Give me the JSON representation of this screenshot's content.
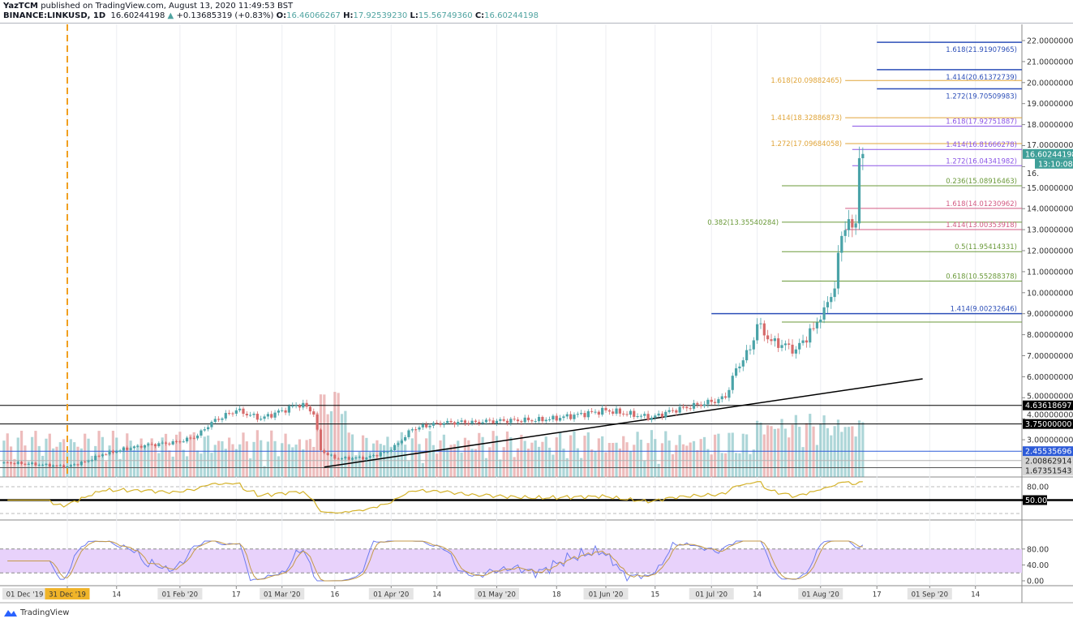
{
  "header": {
    "author": "YazTCM",
    "published": "published on TradingView.com, August 13, 2020 11:49:53 BST",
    "symbol": "BINANCE:LINKUSD, 1D",
    "last": "16.60244198",
    "change": "+0.13685319 (+0.83%)",
    "open_label": "O:",
    "open": "16.46066267",
    "high_label": "H:",
    "high": "17.92539230",
    "low_label": "L:",
    "low": "15.56749360",
    "close_label": "C:",
    "close": "16.60244198"
  },
  "colors": {
    "up": "#4aa3a8",
    "down": "#d66a6a",
    "fib_blue": "#2d4fb8",
    "fib_orange": "#e0a53a",
    "fib_purple": "#8b55e6",
    "fib_green": "#6b9a3a",
    "fib_pink": "#d35b83",
    "rsi": "#d4b22a",
    "stoch_k": "#6d7cf0",
    "stoch_d": "#c49a48",
    "stoch_band": "#e8d2fb",
    "last_price_bg": "#3f9f98"
  },
  "chart_data": {
    "type": "candlestick",
    "title": "BINANCE:LINKUSD, 1D",
    "price_axis": {
      "ylim": [
        1.3,
        22.7
      ],
      "ticks": [
        "22.00000000",
        "21.00000000",
        "20.00000000",
        "19.00000000",
        "18.00000000",
        "17.00000000",
        "16.",
        "15.00000000",
        "14.00000000",
        "13.00000000",
        "12.00000000",
        "11.00000000",
        "10.00000000",
        "9.00000000",
        "8.00000000",
        "7.00000000",
        "6.00000000",
        "5.00000000",
        "4.00000000",
        "3.00000000"
      ]
    },
    "time_axis": {
      "labels": [
        {
          "date": "2019-12-13",
          "text": "01 Dec '19",
          "style": "box"
        },
        {
          "date": "2019-12-31",
          "text": "31 Dec '19",
          "style": "highlight"
        },
        {
          "date": "2020-01-14",
          "text": "14"
        },
        {
          "date": "2020-02-01",
          "text": "01 Feb '20",
          "style": "box"
        },
        {
          "date": "2020-02-17",
          "text": "17"
        },
        {
          "date": "2020-03-01",
          "text": "01 Mar '20",
          "style": "box"
        },
        {
          "date": "2020-03-16",
          "text": "16"
        },
        {
          "date": "2020-04-01",
          "text": "01 Apr '20",
          "style": "box"
        },
        {
          "date": "2020-04-14",
          "text": "14"
        },
        {
          "date": "2020-05-01",
          "text": "01 May '20",
          "style": "box"
        },
        {
          "date": "2020-05-18",
          "text": "18"
        },
        {
          "date": "2020-06-01",
          "text": "01 Jun '20",
          "style": "box"
        },
        {
          "date": "2020-06-15",
          "text": "15"
        },
        {
          "date": "2020-07-01",
          "text": "01 Jul '20",
          "style": "box"
        },
        {
          "date": "2020-07-14",
          "text": "14"
        },
        {
          "date": "2020-08-01",
          "text": "01 Aug '20",
          "style": "box"
        },
        {
          "date": "2020-08-17",
          "text": "17"
        },
        {
          "date": "2020-09-01",
          "text": "01 Sep '20",
          "style": "box"
        },
        {
          "date": "2020-09-14",
          "text": "14"
        }
      ]
    },
    "close_path": [
      [
        "2019-12-13",
        1.92
      ],
      [
        "2019-12-20",
        1.85
      ],
      [
        "2019-12-31",
        1.73
      ],
      [
        "2020-01-05",
        1.95
      ],
      [
        "2020-01-10",
        2.3
      ],
      [
        "2020-01-20",
        2.7
      ],
      [
        "2020-02-01",
        2.9
      ],
      [
        "2020-02-06",
        3.2
      ],
      [
        "2020-02-10",
        3.85
      ],
      [
        "2020-02-17",
        4.4
      ],
      [
        "2020-02-24",
        4.0
      ],
      [
        "2020-03-01",
        4.4
      ],
      [
        "2020-03-07",
        4.75
      ],
      [
        "2020-03-10",
        4.2
      ],
      [
        "2020-03-12",
        2.5
      ],
      [
        "2020-03-16",
        2.1
      ],
      [
        "2020-03-25",
        2.15
      ],
      [
        "2020-04-01",
        2.5
      ],
      [
        "2020-04-07",
        3.5
      ],
      [
        "2020-04-14",
        3.8
      ],
      [
        "2020-04-25",
        3.85
      ],
      [
        "2020-05-01",
        3.9
      ],
      [
        "2020-05-15",
        3.95
      ],
      [
        "2020-06-01",
        4.4
      ],
      [
        "2020-06-14",
        4.05
      ],
      [
        "2020-06-20",
        4.4
      ],
      [
        "2020-07-01",
        4.8
      ],
      [
        "2020-07-05",
        5.0
      ],
      [
        "2020-07-08",
        6.4
      ],
      [
        "2020-07-12",
        7.3
      ],
      [
        "2020-07-14",
        8.5
      ],
      [
        "2020-07-18",
        7.7
      ],
      [
        "2020-07-25",
        7.3
      ],
      [
        "2020-07-30",
        8.3
      ],
      [
        "2020-08-02",
        9.3
      ],
      [
        "2020-08-05",
        10.2
      ],
      [
        "2020-08-07",
        12.7
      ],
      [
        "2020-08-09",
        13.5
      ],
      [
        "2020-08-10",
        13.1
      ],
      [
        "2020-08-11",
        13.3
      ],
      [
        "2020-08-12",
        16.4
      ],
      [
        "2020-08-13",
        16.60244198
      ]
    ],
    "fib_levels": [
      {
        "price": 21.91907965,
        "label": "1.618(21.91907965)",
        "color": "fib_blue",
        "from": "2020-08-17"
      },
      {
        "price": 20.61372739,
        "label": "1.414(20.61372739)",
        "color": "fib_blue",
        "from": "2020-08-17"
      },
      {
        "price": 20.09882465,
        "label": "1.618(20.09882465)",
        "color": "fib_orange",
        "from": "2020-08-08",
        "label_side": "left"
      },
      {
        "price": 19.70509983,
        "label": "1.272(19.70509983)",
        "color": "fib_blue",
        "from": "2020-08-17"
      },
      {
        "price": 18.32886873,
        "label": "1.414(18.32886873)",
        "color": "fib_orange",
        "from": "2020-08-08",
        "label_side": "left"
      },
      {
        "price": 17.92751887,
        "label": "1.618(17.92751887)",
        "color": "fib_purple",
        "from": "2020-08-10"
      },
      {
        "price": 17.09684058,
        "label": "1.272(17.09684058)",
        "color": "fib_orange",
        "from": "2020-08-08",
        "label_side": "left"
      },
      {
        "price": 16.81666278,
        "label": "1.414(16.81666278)",
        "color": "fib_purple",
        "from": "2020-08-10"
      },
      {
        "price": 16.04341982,
        "label": "1.272(16.04341982)",
        "color": "fib_purple",
        "from": "2020-08-10"
      },
      {
        "price": 15.08916463,
        "label": "0.236(15.08916463)",
        "color": "fib_green",
        "from": "2020-07-21"
      },
      {
        "price": 14.01230962,
        "label": "1.618(14.01230962)",
        "color": "fib_pink",
        "from": "2020-08-08"
      },
      {
        "price": 13.35540284,
        "label": "0.382(13.35540284)",
        "color": "fib_green",
        "from": "2020-07-21"
      },
      {
        "price": 13.00353918,
        "label": "1.414(13.00353918)",
        "color": "fib_pink",
        "from": "2020-08-08"
      },
      {
        "price": 11.95414331,
        "label": "0.5(11.95414331)",
        "color": "fib_green",
        "from": "2020-07-21"
      },
      {
        "price": 10.55288378,
        "label": "0.618(10.55288378)",
        "color": "fib_green",
        "from": "2020-07-21"
      },
      {
        "price": 9.00232646,
        "label": "1.414(9.00232646)",
        "color": "fib_blue",
        "from": "2020-07-01"
      },
      {
        "price": 8.6,
        "label": "",
        "color": "fib_green",
        "from": "2020-07-21"
      }
    ],
    "horizontal_levels": [
      {
        "price": 4.63618697,
        "label": "4.63618697",
        "color": "#000000"
      },
      {
        "price": 3.75,
        "label": "3.75000000",
        "color": "#000000"
      },
      {
        "price": 2.45535696,
        "label": "2.45535696",
        "color": "#2d5bd8"
      },
      {
        "price": 2.00862914,
        "label": "2.00862914",
        "color": "#b0b0b0"
      },
      {
        "price": 1.67351543,
        "label": "1.67351543",
        "color": "#555555"
      }
    ],
    "trendline": {
      "from": [
        "2020-03-13",
        1.7
      ],
      "to": [
        "2020-08-30",
        5.9
      ]
    },
    "vertical_marker": "2019-12-31",
    "last_price_label": "16.60244198",
    "countdown": "13:10:08",
    "rsi": {
      "levels": [
        80,
        50,
        20
      ],
      "ticks": [
        "80.00",
        "50.00"
      ]
    },
    "stoch_rsi": {
      "levels": [
        80,
        20
      ],
      "ticks": [
        "80.00",
        "40.00",
        "0.00"
      ]
    }
  },
  "footer": {
    "brand": "TradingView"
  }
}
